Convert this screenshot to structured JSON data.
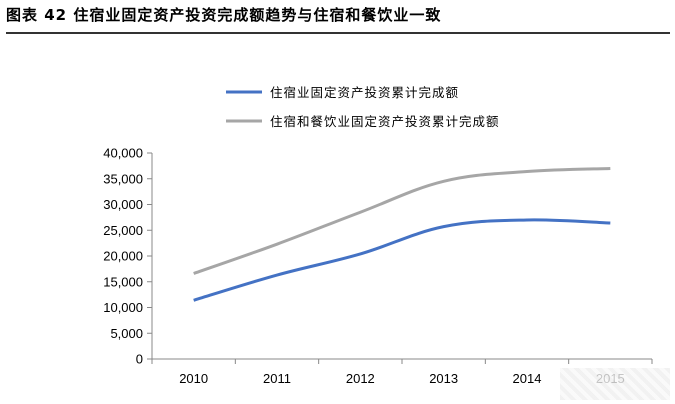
{
  "figure": {
    "title": "图表 42 住宿业固定资产投资完成额趋势与住宿和餐饮业一致"
  },
  "chart_data": {
    "type": "line",
    "x": [
      "2010",
      "2011",
      "2012",
      "2013",
      "2014",
      "2015"
    ],
    "ylim": [
      0,
      40000
    ],
    "yticks": [
      "0",
      "5,000",
      "10,000",
      "15,000",
      "20,000",
      "25,000",
      "30,000",
      "35,000",
      "40,000"
    ],
    "ytick_values": [
      0,
      5000,
      10000,
      15000,
      20000,
      25000,
      30000,
      35000,
      40000
    ],
    "grid": false,
    "legend_position": "top",
    "series": [
      {
        "name": "住宿业固定资产投资累计完成额",
        "color": "#4472C4",
        "values": [
          11400,
          16300,
          20400,
          25700,
          27000,
          26400
        ]
      },
      {
        "name": "住宿和餐饮业固定资产投资累计完成额",
        "color": "#A6A6A6",
        "values": [
          16600,
          22300,
          28500,
          34500,
          36400,
          37000
        ]
      }
    ]
  }
}
